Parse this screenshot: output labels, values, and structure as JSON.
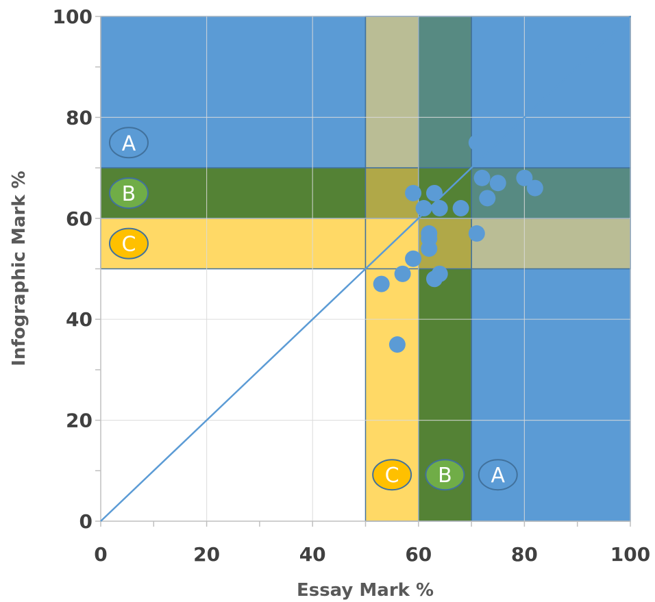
{
  "chart_data": {
    "type": "scatter",
    "xlabel": "Essay Mark %",
    "ylabel": "Infographic Mark %",
    "xlim": [
      0,
      100
    ],
    "ylim": [
      0,
      100
    ],
    "x_ticks": [
      "0",
      "20",
      "40",
      "60",
      "80",
      "100"
    ],
    "y_ticks": [
      "0",
      "20",
      "40",
      "60",
      "80",
      "100"
    ],
    "x_tick_values": [
      0,
      20,
      40,
      60,
      80,
      100
    ],
    "y_tick_values": [
      0,
      20,
      40,
      60,
      80,
      100
    ],
    "grid": true,
    "points": [
      {
        "x": 53,
        "y": 47
      },
      {
        "x": 56,
        "y": 35
      },
      {
        "x": 57,
        "y": 49
      },
      {
        "x": 59,
        "y": 52
      },
      {
        "x": 59,
        "y": 65
      },
      {
        "x": 61,
        "y": 62
      },
      {
        "x": 62,
        "y": 57
      },
      {
        "x": 62,
        "y": 56
      },
      {
        "x": 62,
        "y": 54
      },
      {
        "x": 63,
        "y": 65
      },
      {
        "x": 63,
        "y": 48
      },
      {
        "x": 64,
        "y": 62
      },
      {
        "x": 64,
        "y": 49
      },
      {
        "x": 68,
        "y": 62
      },
      {
        "x": 71,
        "y": 75
      },
      {
        "x": 71,
        "y": 57
      },
      {
        "x": 72,
        "y": 68
      },
      {
        "x": 73,
        "y": 64
      },
      {
        "x": 75,
        "y": 67
      },
      {
        "x": 80,
        "y": 68
      },
      {
        "x": 82,
        "y": 66
      }
    ],
    "diagonal_line": [
      [
        0,
        0
      ],
      [
        100,
        100
      ]
    ],
    "grade_bands": [
      {
        "grade": "A",
        "min": 70,
        "max": 100,
        "color": "#5B9BD5"
      },
      {
        "grade": "B",
        "min": 60,
        "max": 70,
        "color": "#548235"
      },
      {
        "grade": "C",
        "min": 50,
        "max": 60,
        "color": "#FFD966"
      }
    ],
    "overlap_colors": {
      "A_A": "#5B9BD5",
      "B_B": "#548235",
      "C_C": "#FFD966",
      "A_B": "#578A82",
      "A_C": "#BABD95",
      "B_C": "#B0A848"
    },
    "badge_colors": {
      "A": "#5B9BD5",
      "B": "#70AD47",
      "C": "#FFC000"
    },
    "point_color": "#5B9BD5",
    "line_color": "#5B9BD5",
    "badge_y_values": [
      {
        "grade": "A",
        "y": 75
      },
      {
        "grade": "B",
        "y": 65
      },
      {
        "grade": "C",
        "y": 55
      }
    ],
    "badge_x_values": [
      {
        "grade": "C",
        "x": 55
      },
      {
        "grade": "B",
        "x": 65
      },
      {
        "grade": "A",
        "x": 75
      }
    ]
  }
}
